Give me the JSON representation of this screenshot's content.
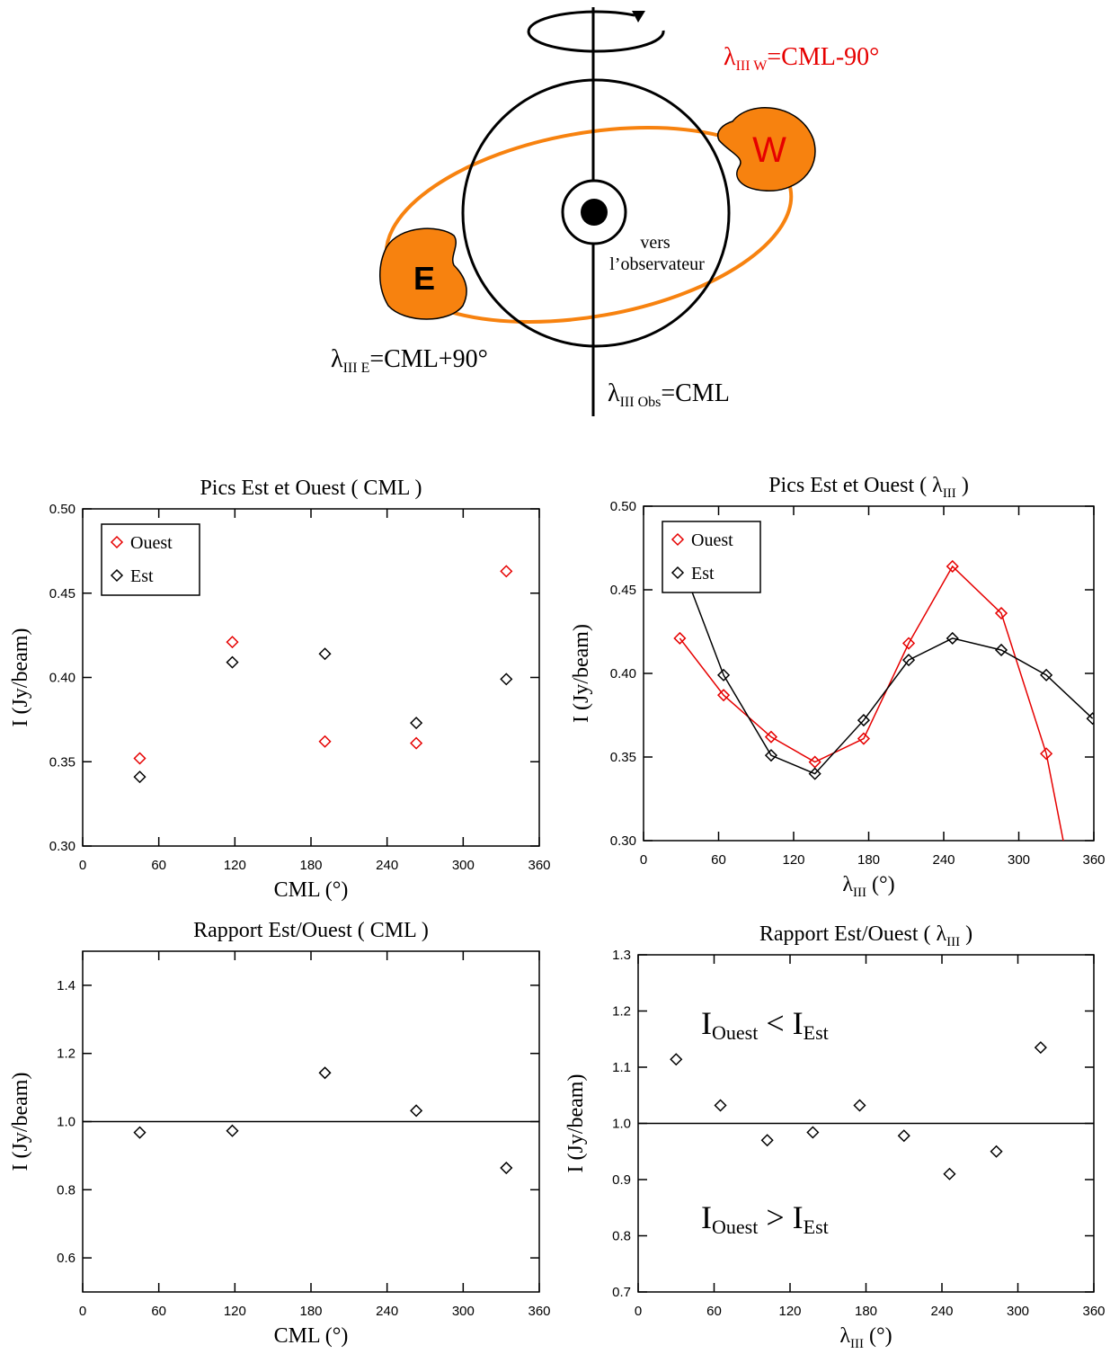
{
  "diagram": {
    "west_label": [
      "λ",
      "III W",
      "=CML-90°"
    ],
    "east_label": [
      "λ",
      "III E",
      "=CML+90°"
    ],
    "obs_label": [
      "λ",
      "III Obs",
      "=CML"
    ],
    "center_note": [
      "vers",
      "l’observateur"
    ],
    "east": "E",
    "west": "W"
  },
  "chart_data": [
    {
      "type": "scatter",
      "title": [
        "Pics Est et Ouest ( CML )"
      ],
      "xlabel": [
        "CML (°)"
      ],
      "ylabel": "I (Jy/beam)",
      "x": [
        45,
        118,
        191,
        263,
        334
      ],
      "series": [
        {
          "name": "Ouest",
          "color": "#e60000",
          "values": [
            0.352,
            0.421,
            0.362,
            0.361,
            0.463
          ]
        },
        {
          "name": "Est",
          "color": "#000000",
          "values": [
            0.341,
            0.409,
            0.414,
            0.373,
            0.399
          ]
        }
      ],
      "xlim": [
        0,
        360
      ],
      "xticks": [
        0,
        60,
        120,
        180,
        240,
        300,
        360
      ],
      "ylim": [
        0.3,
        0.5
      ],
      "yticks": [
        {
          "value": 0.3,
          "label": "0.30"
        },
        0.35,
        {
          "value": 0.4,
          "label": "0.40"
        },
        0.45,
        {
          "value": 0.5,
          "label": "0.50"
        }
      ],
      "legend": "upper left"
    },
    {
      "type": "line",
      "title": [
        "Pics Est et Ouest ( λ",
        "III",
        " )"
      ],
      "xlabel": [
        "λ",
        "III",
        " (°)"
      ],
      "ylabel": "I (Jy/beam)",
      "x": [
        29,
        64,
        102,
        137,
        176,
        212,
        247,
        286,
        322,
        359
      ],
      "series": [
        {
          "name": "Ouest",
          "color": "#e60000",
          "values": [
            0.421,
            0.387,
            0.362,
            0.347,
            0.361,
            0.418,
            0.464,
            0.436,
            0.352,
            0.21
          ]
        },
        {
          "name": "Est",
          "color": "#000000",
          "values": [
            0.468,
            0.399,
            0.351,
            0.34,
            0.372,
            0.408,
            0.421,
            0.414,
            0.399,
            0.373
          ]
        }
      ],
      "xlim": [
        0,
        360
      ],
      "xticks": [
        0,
        60,
        120,
        180,
        240,
        300,
        360
      ],
      "ylim": [
        0.3,
        0.5
      ],
      "yticks": [
        {
          "value": 0.3,
          "label": "0.30"
        },
        0.35,
        {
          "value": 0.4,
          "label": "0.40"
        },
        0.45,
        {
          "value": 0.5,
          "label": "0.50"
        }
      ],
      "legend": "upper left"
    },
    {
      "type": "scatter",
      "title": [
        "Rapport Est/Ouest ( CML )"
      ],
      "xlabel": [
        "CML (°)"
      ],
      "ylabel": "I (Jy/beam)",
      "x": [
        45,
        118,
        191,
        263,
        334
      ],
      "values": [
        0.968,
        0.973,
        1.143,
        1.032,
        0.864
      ],
      "color": "#000000",
      "xlim": [
        0,
        360
      ],
      "xticks": [
        0,
        60,
        120,
        180,
        240,
        300,
        360
      ],
      "ylim": [
        0.5,
        1.5
      ],
      "yticks": [
        0.6,
        0.8,
        {
          "value": 1,
          "label": "1.0"
        },
        1.2,
        1.4
      ],
      "hline": 1
    },
    {
      "type": "scatter",
      "title": [
        "Rapport Est/Ouest ( λ",
        "III",
        " )"
      ],
      "xlabel": [
        "λ",
        "III",
        " (°)"
      ],
      "ylabel": "I (Jy/beam)",
      "x": [
        30,
        65,
        102,
        138,
        175,
        210,
        246,
        283,
        318
      ],
      "values": [
        1.114,
        1.032,
        0.97,
        0.984,
        1.032,
        0.978,
        0.91,
        0.95,
        1.135
      ],
      "color": "#000000",
      "xlim": [
        0,
        360
      ],
      "xticks": [
        0,
        60,
        120,
        180,
        240,
        300,
        360
      ],
      "ylim": [
        0.7,
        1.3
      ],
      "yticks": [
        0.7,
        0.8,
        0.9,
        {
          "value": 1,
          "label": "1.0"
        },
        1.1,
        1.2,
        1.3
      ],
      "hline": 1,
      "annotations": [
        [
          "I",
          "Ouest",
          " < I",
          "Est"
        ],
        [
          "I",
          "Ouest",
          " > I",
          "Est"
        ]
      ]
    }
  ]
}
